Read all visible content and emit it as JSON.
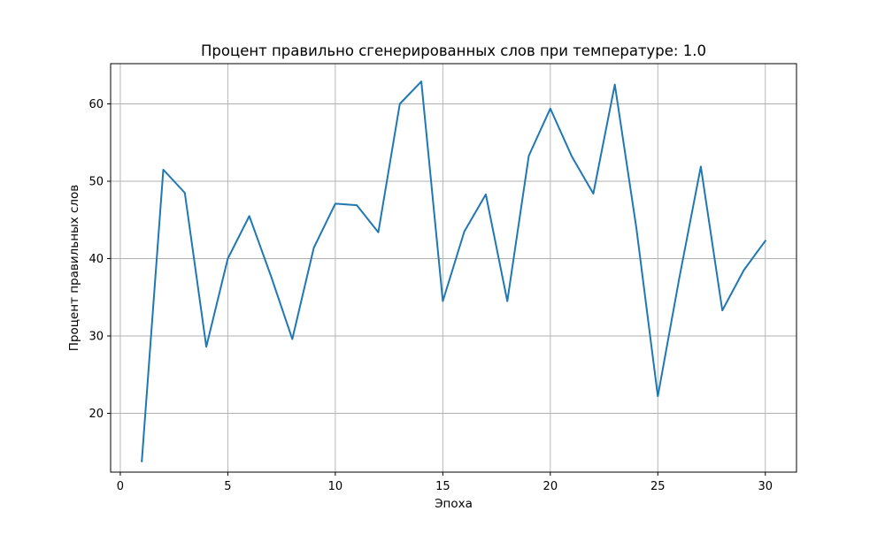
{
  "chart_data": {
    "type": "line",
    "title": "Процент правильно сгенерированных слов при температуре: 1.0",
    "xlabel": "Эпоха",
    "ylabel": "Процент правильных слов",
    "xlim": [
      -0.45,
      31.45
    ],
    "ylim": [
      12.4,
      65.2
    ],
    "xticks": [
      0,
      5,
      10,
      15,
      20,
      25,
      30
    ],
    "yticks": [
      20,
      30,
      40,
      50,
      60
    ],
    "grid": true,
    "series": [
      {
        "color": "#1f77b4",
        "x": [
          1,
          2,
          3,
          4,
          5,
          6,
          7,
          8,
          9,
          10,
          11,
          12,
          13,
          14,
          15,
          16,
          17,
          18,
          19,
          20,
          21,
          22,
          23,
          24,
          25,
          26,
          27,
          28,
          29,
          30
        ],
        "y": [
          13.8,
          51.5,
          48.5,
          28.6,
          40.0,
          45.5,
          37.8,
          29.6,
          41.4,
          47.1,
          46.9,
          43.4,
          60.0,
          62.9,
          34.5,
          43.5,
          48.3,
          34.5,
          53.3,
          59.4,
          53.2,
          48.4,
          62.5,
          44.0,
          22.2,
          37.5,
          51.9,
          33.3,
          38.5,
          42.3
        ]
      }
    ]
  }
}
